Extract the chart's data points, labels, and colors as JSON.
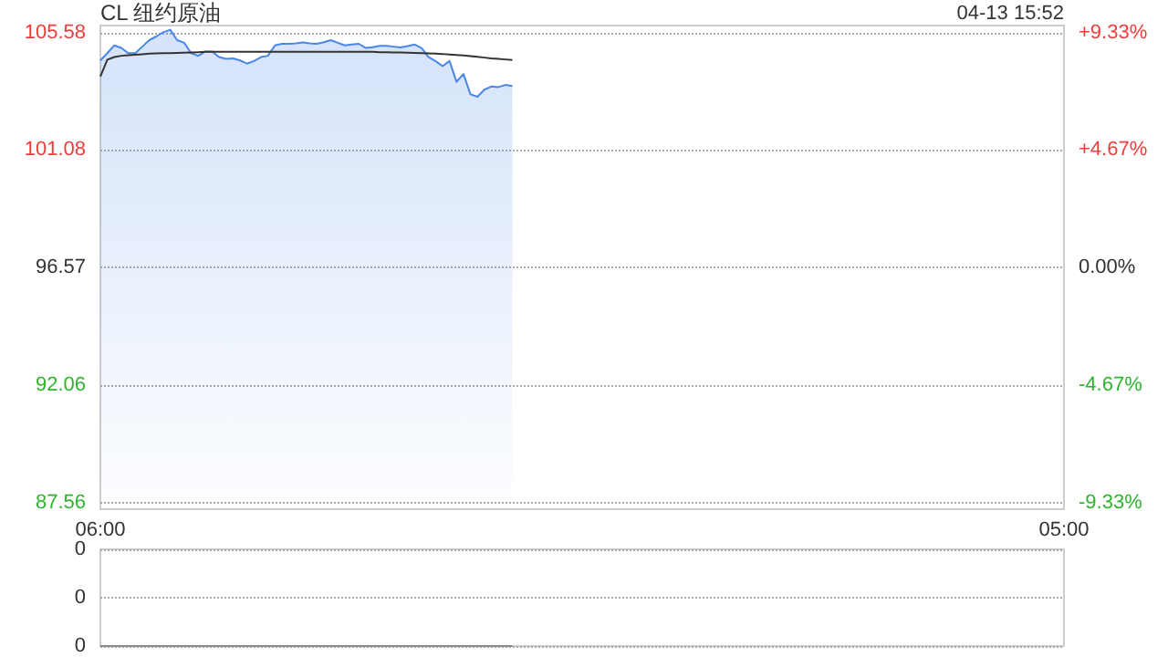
{
  "chart_data": [
    {
      "type": "area",
      "title": "CL 纽约原油",
      "annotations": [
        "04-13 15:52"
      ],
      "categories": [
        "06:00",
        null,
        null,
        null,
        null,
        null,
        null,
        null,
        null,
        null,
        null,
        null,
        null,
        null,
        null,
        null,
        null,
        null,
        null,
        null,
        null,
        null,
        null,
        null,
        null,
        null,
        null,
        null,
        null,
        null,
        null,
        null,
        null,
        null,
        null,
        null,
        null,
        null,
        null,
        null,
        null,
        null,
        null,
        null,
        null,
        null,
        null,
        null,
        null,
        null,
        null,
        null,
        null,
        null,
        null,
        null,
        null,
        null,
        null,
        null,
        null,
        null,
        null,
        null,
        null,
        null,
        null,
        null,
        null,
        null,
        null,
        null,
        null,
        null,
        null,
        null,
        null,
        null,
        null,
        null,
        null,
        null,
        null,
        null,
        null,
        null,
        null,
        null,
        null,
        null,
        null,
        null,
        null,
        null,
        null,
        null,
        null,
        null,
        null,
        null,
        null,
        null,
        null,
        null,
        null,
        null,
        null,
        null,
        null,
        null,
        null,
        null,
        null,
        null,
        null,
        null,
        null,
        null,
        null,
        null,
        null,
        null,
        null,
        null,
        null,
        null,
        null,
        null,
        null,
        null,
        null,
        null,
        null,
        null,
        null,
        null,
        null,
        null,
        "05:00"
      ],
      "ylim": [
        87.3,
        105.86
      ],
      "yticks": [
        87.56,
        92.06,
        96.57,
        101.08,
        105.58
      ],
      "y2lim": [
        -9.6,
        9.62
      ],
      "y2ticks": [
        {
          "value": -9.33,
          "label": "-9.33%"
        },
        {
          "value": -4.67,
          "label": "-4.67%"
        },
        {
          "value": 0,
          "label": "0.00%"
        },
        {
          "value": 4.67,
          "label": "+4.67%"
        },
        {
          "value": 9.33,
          "label": "+9.33%"
        }
      ],
      "grid": "y",
      "series": [
        {
          "color": "#4a86e8",
          "values": [
            104.52,
            104.8,
            105.1,
            105.0,
            104.8,
            104.8,
            105.05,
            105.3,
            105.44,
            105.6,
            105.7,
            105.3,
            105.2,
            104.8,
            104.7,
            104.86,
            104.86,
            104.65,
            104.58,
            104.6,
            104.52,
            104.4,
            104.5,
            104.65,
            104.7,
            105.1,
            105.16,
            105.16,
            105.18,
            105.21,
            105.18,
            105.16,
            105.22,
            105.3,
            105.2,
            105.1,
            105.13,
            105.16,
            105.0,
            105.03,
            105.08,
            105.08,
            105.05,
            105.02,
            105.07,
            105.13,
            105.0,
            104.65,
            104.5,
            104.3,
            104.5,
            103.7,
            104.0,
            103.22,
            103.13,
            103.4,
            103.52,
            103.5,
            103.58,
            103.54,
            null,
            null,
            null,
            null,
            null,
            null,
            null,
            null,
            null,
            null,
            null,
            null,
            null,
            null,
            null,
            null,
            null,
            null,
            null,
            null,
            null,
            null,
            null,
            null,
            null,
            null,
            null,
            null,
            null,
            null,
            null,
            null,
            null,
            null,
            null,
            null,
            null,
            null,
            null,
            null,
            null,
            null,
            null,
            null,
            null,
            null,
            null,
            null,
            null,
            null,
            null,
            null,
            null,
            null,
            null,
            null,
            null,
            null,
            null,
            null,
            null,
            null,
            null,
            null,
            null,
            null,
            null,
            null,
            null,
            null,
            null,
            null,
            null,
            null,
            null,
            null,
            null,
            null,
            null
          ]
        },
        {
          "type": "line",
          "color": "#333333",
          "values": [
            103.9,
            104.55,
            104.65,
            104.7,
            104.72,
            104.74,
            104.76,
            104.78,
            104.79,
            104.8,
            104.8,
            104.81,
            104.82,
            104.83,
            104.84,
            104.85,
            104.85,
            104.85,
            104.85,
            104.85,
            104.85,
            104.85,
            104.85,
            104.85,
            104.85,
            104.85,
            104.85,
            104.85,
            104.85,
            104.85,
            104.85,
            104.85,
            104.85,
            104.85,
            104.85,
            104.85,
            104.85,
            104.85,
            104.85,
            104.85,
            104.84,
            104.84,
            104.83,
            104.83,
            104.82,
            104.81,
            104.8,
            104.79,
            104.78,
            104.77,
            104.75,
            104.73,
            104.71,
            104.69,
            104.66,
            104.63,
            104.6,
            104.58,
            104.56,
            104.54,
            null,
            null,
            null,
            null,
            null,
            null,
            null,
            null,
            null,
            null,
            null,
            null,
            null,
            null,
            null,
            null,
            null,
            null,
            null,
            null,
            null,
            null,
            null,
            null,
            null,
            null,
            null,
            null,
            null,
            null,
            null,
            null,
            null,
            null,
            null,
            null,
            null,
            null,
            null,
            null,
            null,
            null,
            null,
            null,
            null,
            null,
            null,
            null,
            null,
            null,
            null,
            null,
            null,
            null,
            null,
            null,
            null,
            null,
            null,
            null,
            null,
            null,
            null,
            null,
            null,
            null,
            null,
            null,
            null,
            null,
            null,
            null,
            null,
            null,
            null,
            null,
            null,
            null,
            null
          ]
        }
      ]
    },
    {
      "type": "line",
      "categories": [
        null,
        null,
        null,
        null,
        null,
        null,
        null,
        null,
        null,
        null,
        null,
        null,
        null,
        null,
        null,
        null,
        null,
        null,
        null,
        null,
        null,
        null,
        null,
        null,
        null,
        null,
        null,
        null,
        null,
        null,
        null,
        null,
        null,
        null,
        null,
        null,
        null,
        null,
        null,
        null,
        null,
        null,
        null,
        null,
        null,
        null,
        null,
        null,
        null,
        null,
        null,
        null,
        null,
        null,
        null,
        null,
        null,
        null,
        null,
        null,
        null,
        null,
        null,
        null,
        null,
        null,
        null,
        null,
        null,
        null,
        null,
        null,
        null,
        null,
        null,
        null,
        null,
        null,
        null,
        null,
        null,
        null,
        null,
        null,
        null,
        null,
        null,
        null,
        null,
        null,
        null,
        null,
        null,
        null,
        null,
        null,
        null,
        null,
        null,
        null,
        null,
        null,
        null,
        null,
        null,
        null,
        null,
        null,
        null,
        null,
        null,
        null,
        null,
        null,
        null,
        null,
        null,
        null,
        null,
        null,
        null,
        null,
        null,
        null,
        null,
        null,
        null,
        null,
        null,
        null,
        null,
        null,
        null,
        null,
        null,
        null,
        null,
        null,
        null
      ],
      "ylim": [
        0,
        0.0004
      ],
      "yticks": [
        {
          "value": 0,
          "label": "0"
        },
        {
          "value": 0.0002,
          "label": "0"
        },
        {
          "value": 0.0004,
          "label": "0"
        }
      ],
      "tick_labels": "y",
      "grid": "y",
      "series": [
        {
          "color": "#888888",
          "values": [
            0,
            0,
            0,
            0,
            0,
            0,
            0,
            0,
            0,
            0,
            0,
            0,
            0,
            0,
            0,
            0,
            0,
            0,
            0,
            0,
            0,
            0,
            0,
            0,
            0,
            0,
            0,
            0,
            0,
            0,
            0,
            0,
            0,
            0,
            0,
            0,
            0,
            0,
            0,
            0,
            0,
            0,
            0,
            0,
            0,
            0,
            0,
            0,
            0,
            0,
            0,
            0,
            0,
            0,
            0,
            0,
            0,
            0,
            0,
            0,
            null,
            null,
            null,
            null,
            null,
            null,
            null,
            null,
            null,
            null,
            null,
            null,
            null,
            null,
            null,
            null,
            null,
            null,
            null,
            null,
            null,
            null,
            null,
            null,
            null,
            null,
            null,
            null,
            null,
            null,
            null,
            null,
            null,
            null,
            null,
            null,
            null,
            null,
            null,
            null,
            null,
            null,
            null,
            null,
            null,
            null,
            null,
            null,
            null,
            null,
            null,
            null,
            null,
            null,
            null,
            null,
            null,
            null,
            null,
            null,
            null,
            null,
            null,
            null,
            null,
            null,
            null,
            null,
            null,
            null,
            null,
            null,
            null,
            null,
            null,
            null,
            null,
            null,
            null
          ]
        }
      ]
    }
  ]
}
